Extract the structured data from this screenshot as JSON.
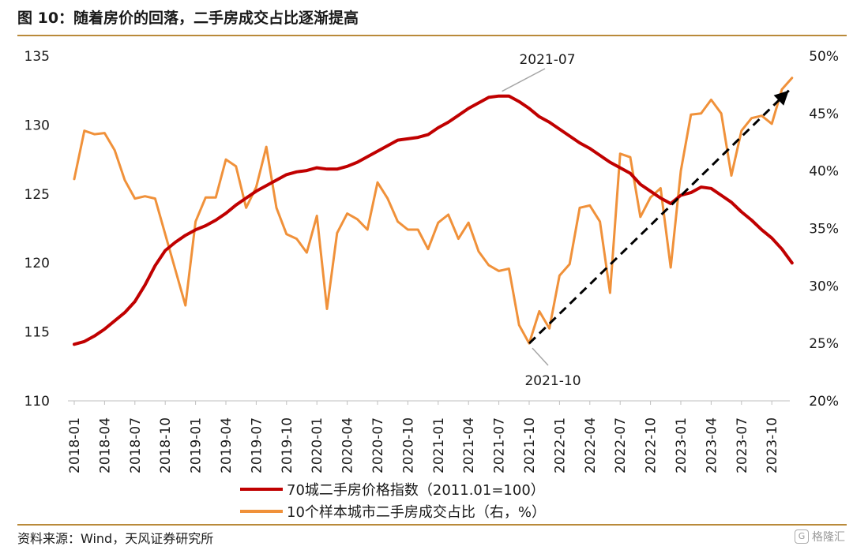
{
  "header": {
    "title": "图 10：随着房价的回落，二手房成交占比逐渐提高"
  },
  "footer": {
    "source": "资料来源：Wind，天风证券研究所",
    "watermark": "格隆汇"
  },
  "colors": {
    "index_line": "#c00000",
    "share_line": "#f0913a",
    "trend_arrow": "#000000",
    "rule": "#b98a3a"
  },
  "chart_data": {
    "type": "line",
    "x": [
      "2018-01",
      "2018-02",
      "2018-03",
      "2018-04",
      "2018-05",
      "2018-06",
      "2018-07",
      "2018-08",
      "2018-09",
      "2018-10",
      "2018-11",
      "2018-12",
      "2019-01",
      "2019-02",
      "2019-03",
      "2019-04",
      "2019-05",
      "2019-06",
      "2019-07",
      "2019-08",
      "2019-09",
      "2019-10",
      "2019-11",
      "2019-12",
      "2020-01",
      "2020-02",
      "2020-03",
      "2020-04",
      "2020-05",
      "2020-06",
      "2020-07",
      "2020-08",
      "2020-09",
      "2020-10",
      "2020-11",
      "2020-12",
      "2021-01",
      "2021-02",
      "2021-03",
      "2021-04",
      "2021-05",
      "2021-06",
      "2021-07",
      "2021-08",
      "2021-09",
      "2021-10",
      "2021-11",
      "2021-12",
      "2022-01",
      "2022-02",
      "2022-03",
      "2022-04",
      "2022-05",
      "2022-06",
      "2022-07",
      "2022-08",
      "2022-09",
      "2022-10",
      "2022-11",
      "2022-12",
      "2023-01",
      "2023-02",
      "2023-03",
      "2023-04",
      "2023-05",
      "2023-06",
      "2023-07",
      "2023-08",
      "2023-09",
      "2023-10",
      "2023-11",
      "2023-12"
    ],
    "x_tick_labels": [
      "2018-01",
      "2018-04",
      "2018-07",
      "2018-10",
      "2019-01",
      "2019-04",
      "2019-07",
      "2019-10",
      "2020-01",
      "2020-04",
      "2020-07",
      "2020-10",
      "2021-01",
      "2021-04",
      "2021-07",
      "2021-10",
      "2022-01",
      "2022-04",
      "2022-07",
      "2022-10",
      "2023-01",
      "2023-04",
      "2023-07",
      "2023-10"
    ],
    "y_left": {
      "ticks": [
        "110",
        "115",
        "120",
        "125",
        "130",
        "135"
      ],
      "ylim": [
        110,
        135
      ]
    },
    "y_right": {
      "ticks": [
        "20%",
        "25%",
        "30%",
        "35%",
        "40%",
        "45%",
        "50%"
      ],
      "ylim": [
        20,
        50
      ]
    },
    "series": [
      {
        "name": "70城二手房价格指数（2011.01=100）",
        "axis": "left",
        "values": [
          114.1,
          114.3,
          114.7,
          115.2,
          115.8,
          116.4,
          117.2,
          118.4,
          119.8,
          120.9,
          121.5,
          122.0,
          122.4,
          122.7,
          123.1,
          123.6,
          124.2,
          124.7,
          125.2,
          125.6,
          126.0,
          126.4,
          126.6,
          126.7,
          126.9,
          126.8,
          126.8,
          127.0,
          127.3,
          127.7,
          128.1,
          128.5,
          128.9,
          129.0,
          129.1,
          129.3,
          129.8,
          130.2,
          130.7,
          131.2,
          131.6,
          132.0,
          132.1,
          132.1,
          131.7,
          131.2,
          130.6,
          130.2,
          129.7,
          129.2,
          128.7,
          128.3,
          127.8,
          127.3,
          126.9,
          126.5,
          125.7,
          125.2,
          124.7,
          124.3,
          124.9,
          125.1,
          125.5,
          125.4,
          124.9,
          124.4,
          123.7,
          123.1,
          122.4,
          121.8,
          121.0,
          120.0
        ]
      },
      {
        "name": "10个样本城市二手房成交占比（右，%）",
        "axis": "right",
        "values": [
          39.3,
          43.5,
          43.2,
          43.3,
          41.8,
          39.2,
          37.6,
          37.8,
          37.6,
          34.5,
          31.4,
          28.3,
          35.6,
          37.7,
          37.7,
          41.0,
          40.4,
          36.8,
          38.6,
          42.1,
          36.8,
          34.5,
          34.1,
          32.9,
          36.1,
          28.0,
          34.6,
          36.3,
          35.8,
          34.9,
          39.0,
          37.6,
          35.6,
          34.9,
          34.9,
          33.2,
          35.5,
          36.2,
          34.1,
          35.5,
          33.0,
          31.8,
          31.3,
          31.5,
          26.6,
          25.0,
          27.8,
          26.3,
          30.9,
          31.9,
          36.8,
          37.0,
          35.6,
          29.4,
          41.5,
          41.2,
          36.0,
          37.7,
          38.5,
          31.6,
          40.0,
          44.9,
          45.0,
          46.2,
          45.0,
          39.6,
          43.5,
          44.6,
          44.8,
          44.1,
          47.1,
          48.1
        ]
      }
    ],
    "annotations": [
      {
        "text": "2021-07",
        "at": "2021-07"
      },
      {
        "text": "2021-10",
        "at": "2021-10"
      }
    ],
    "trend_arrow": {
      "from": {
        "x": "2021-10",
        "y_right": 25.0
      },
      "to": {
        "x": "2023-12",
        "y_right": 47.0
      }
    },
    "legend": {
      "placement": "bottom"
    },
    "grid": false
  }
}
